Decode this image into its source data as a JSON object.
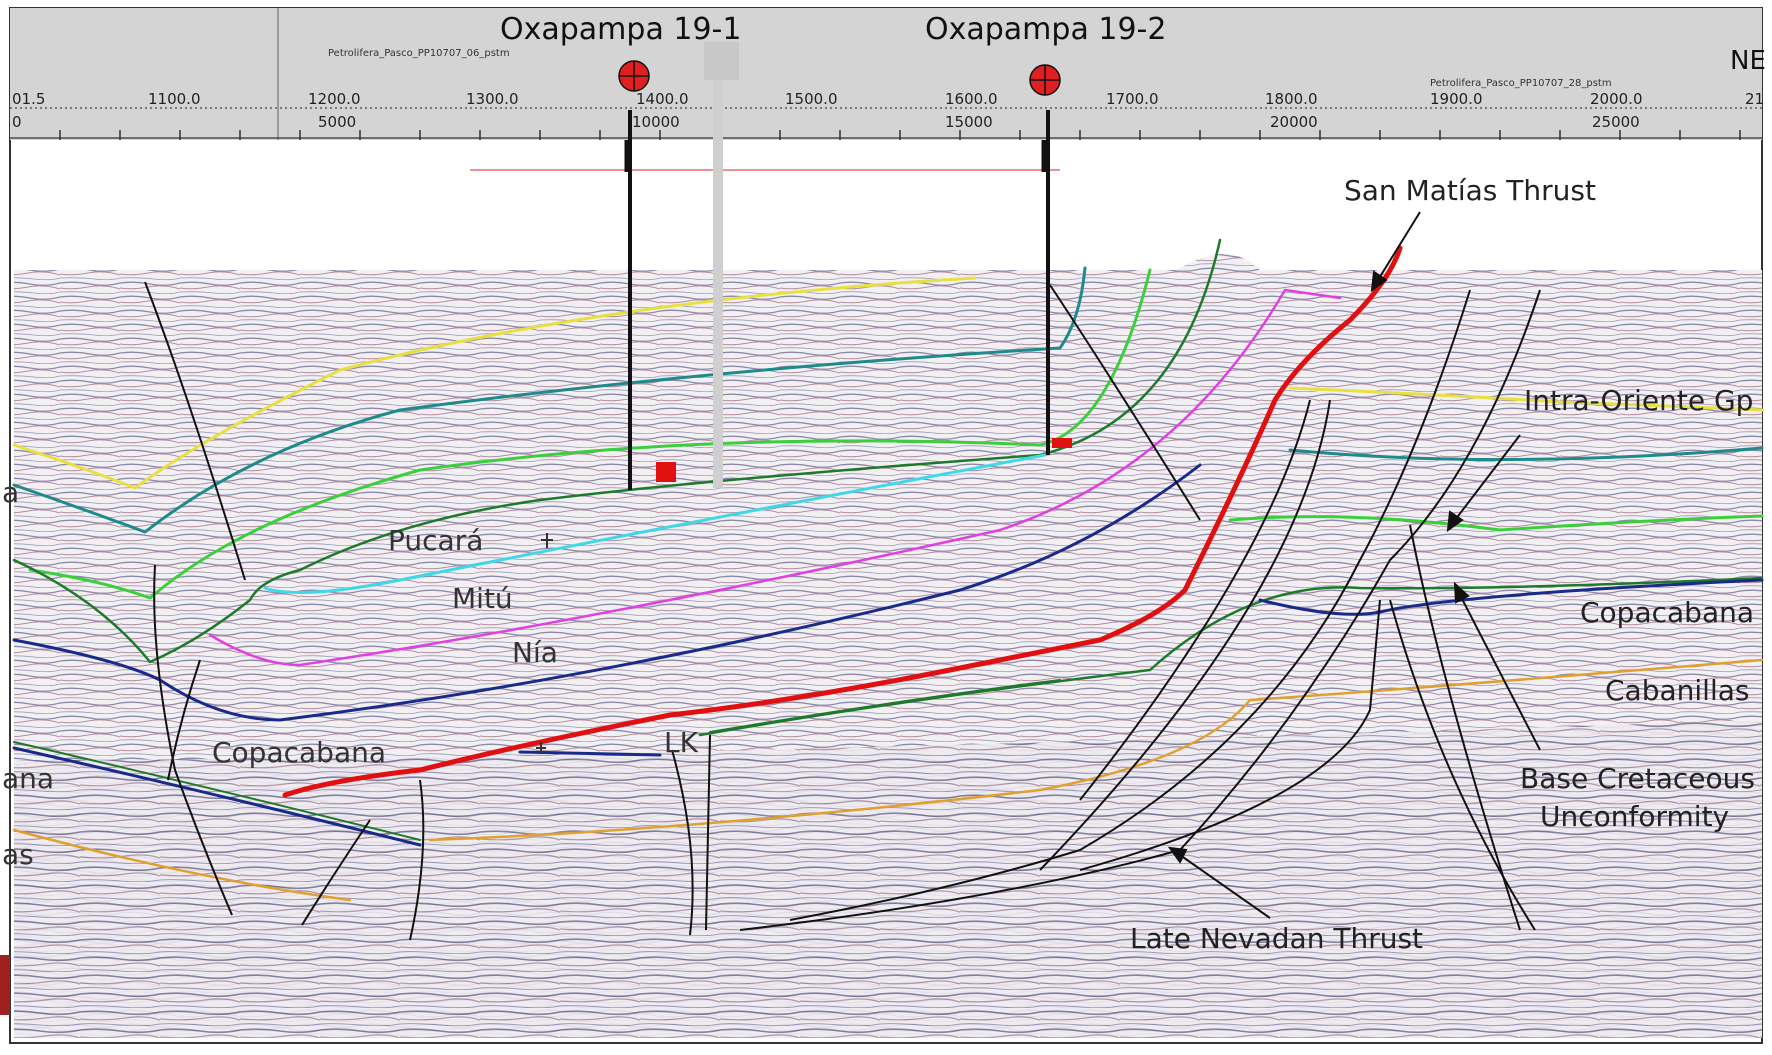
{
  "wells": [
    {
      "name": "Oxapampa 19-1"
    },
    {
      "name": "Oxapampa 19-2"
    }
  ],
  "corner_label": "NE",
  "line_titles": {
    "left": "Petrolifera_Pasco_PP10707_06_pstm",
    "right": "Petrolifera_Pasco_PP10707_28_pstm"
  },
  "axis": {
    "cdp_labels": [
      "01.5",
      "1100.0",
      "1200.0",
      "1300.0",
      "1400.0",
      "1500.0",
      "1600.0",
      "1700.0",
      "1800.0",
      "1900.0",
      "2000.0",
      "21"
    ],
    "distance_labels": [
      "0",
      "5000",
      "10000",
      "15000",
      "20000",
      "25000"
    ]
  },
  "annotations": {
    "san_matias": "San Matías Thrust",
    "intra_oriente": "Intra-Oriente Gp",
    "copacabana_right": "Copacabana",
    "cabanillas": "Cabanillas",
    "base_cretaceous_1": "Base Cretaceous",
    "base_cretaceous_2": "Unconformity",
    "late_nevadan": "Late Nevadan Thrust"
  },
  "formations": {
    "pucara": "Pucará",
    "mitu": "Mitú",
    "nia": "Nía",
    "copacabana": "Copacabana",
    "lk": "LK",
    "left_1": "a",
    "left_2": "ana",
    "left_3": "as"
  },
  "colors": {
    "horizon_yellow": "#e8e040",
    "horizon_teal": "#1f8a8a",
    "horizon_light_green": "#3ccf3c",
    "horizon_dark_green": "#1e7a2a",
    "horizon_cyan": "#3fd8e8",
    "horizon_magenta": "#e040e0",
    "horizon_navy": "#1a2a8a",
    "horizon_orange": "#e0a030",
    "main_thrust": "#e01010",
    "well_marker": "#e02020"
  }
}
